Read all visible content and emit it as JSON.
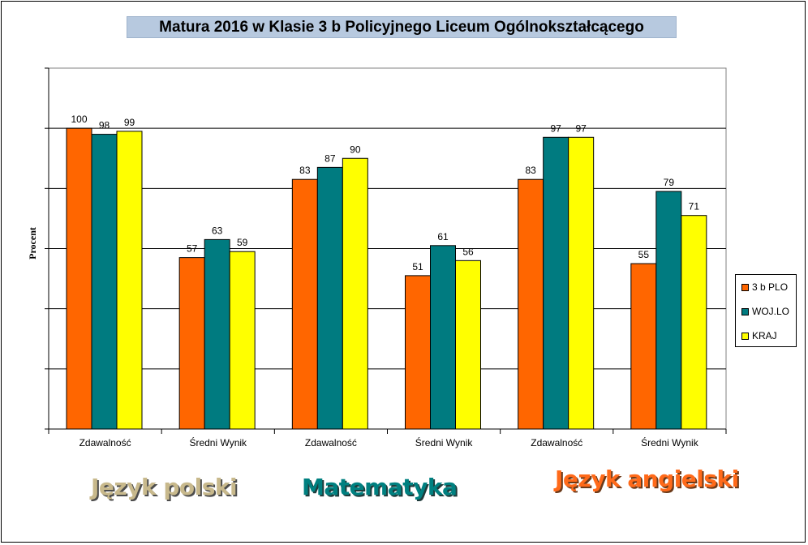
{
  "title": "Matura 2016 w Klasie 3 b Policyjnego Liceum Ogólnokształcącego",
  "chart_data": {
    "type": "bar",
    "title": "Matura 2016 w Klasie 3 b Policyjnego Liceum Ogólnokształcącego",
    "ylabel": "Procent",
    "xlabel": "",
    "categories": [
      "Zdawalność",
      "Średni Wynik",
      "Zdawalność",
      "Średni Wynik",
      "Zdawalność",
      "Średni Wynik"
    ],
    "series": [
      {
        "name": "3 b PLO",
        "color": "#ff6600",
        "values": [
          100,
          57,
          83,
          51,
          83,
          55
        ]
      },
      {
        "name": "WOJ.LO",
        "color": "#007b80",
        "values": [
          98,
          63,
          87,
          61,
          97,
          79
        ]
      },
      {
        "name": "KRAJ",
        "color": "#ffff00",
        "values": [
          99,
          59,
          90,
          56,
          97,
          71
        ]
      }
    ],
    "ylim": [
      0,
      120
    ],
    "ytick_step": 20,
    "grid": true,
    "legend": "right"
  },
  "legend_items": [
    "3 b PLO",
    "WOJ.LO",
    "KRAJ"
  ],
  "subjects": [
    {
      "label": "Język polski",
      "color": "#c8b98c",
      "shadow": "#4d4d4d"
    },
    {
      "label": "Matematyka",
      "color": "#008080",
      "shadow": "#1f3a3a"
    },
    {
      "label": "Język angielski",
      "color": "#ff6a1a",
      "shadow": "#6b3a1a"
    }
  ]
}
